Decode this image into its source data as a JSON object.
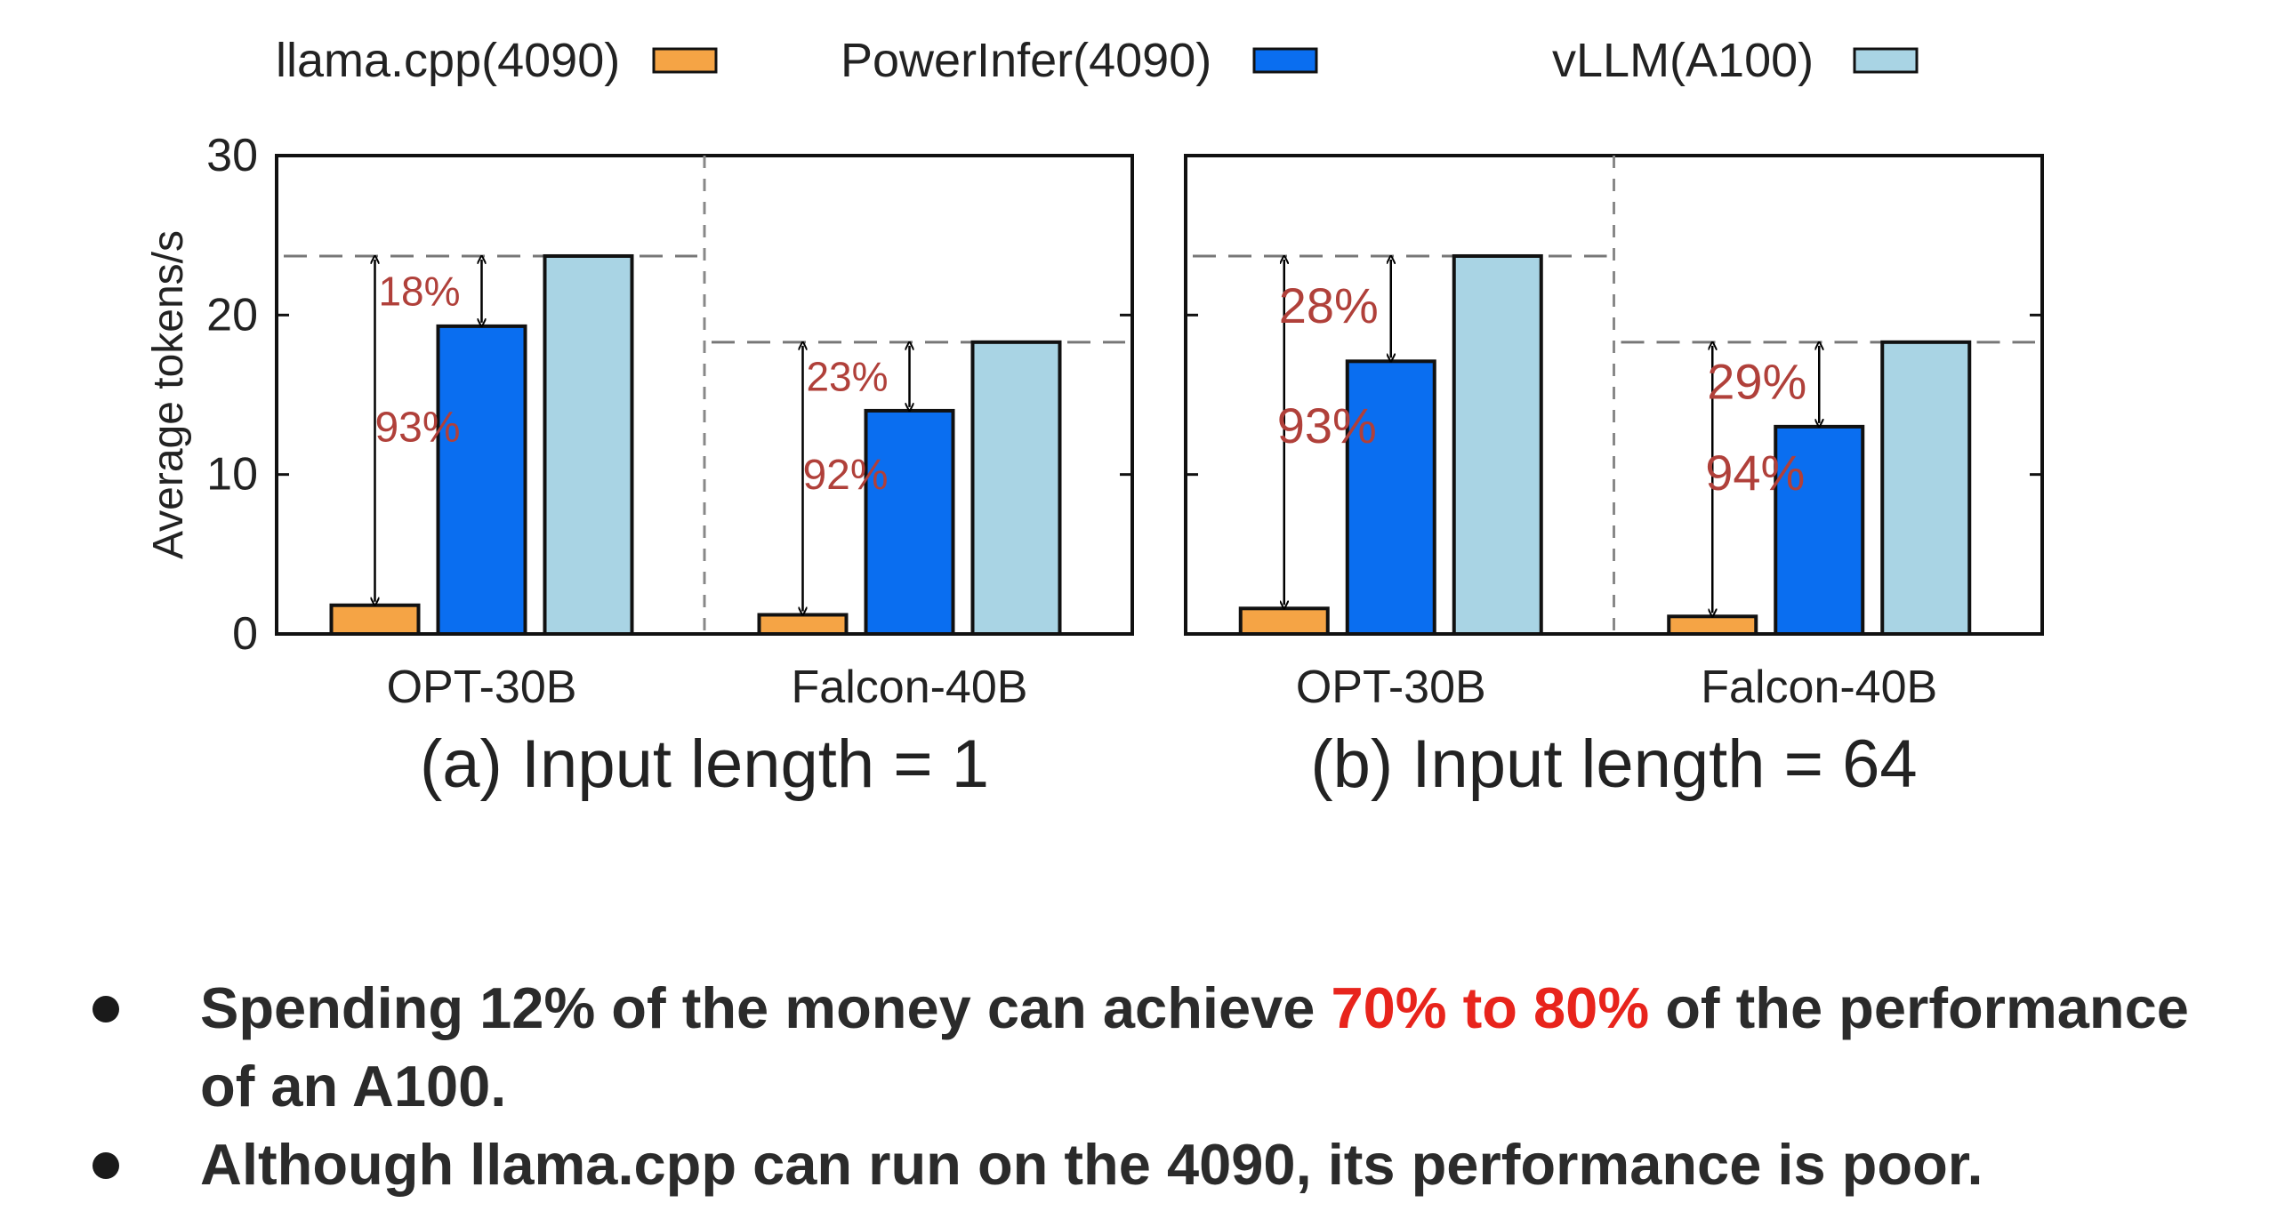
{
  "colors": {
    "llama": "#f5a445",
    "powerinfer": "#0a6ef0",
    "vllm": "#a9d4e4",
    "annotation": "#b0403a",
    "highlight": "#e8241c"
  },
  "chart_data": {
    "type": "bar",
    "ylabel": "Average tokens/s",
    "ylim": [
      0,
      30
    ],
    "yticks": [
      "0",
      "10",
      "20",
      "30"
    ],
    "legend": {
      "placement": "top",
      "entries": [
        {
          "name": "llama.cpp(4090)",
          "color_key": "llama"
        },
        {
          "name": "PowerInfer(4090)",
          "color_key": "powerinfer"
        },
        {
          "name": "vLLM(A100)",
          "color_key": "vllm"
        }
      ]
    },
    "panels": [
      {
        "title": "(a) Input length = 1",
        "categories": [
          "OPT-30B",
          "Falcon-40B"
        ],
        "series": [
          {
            "name": "llama.cpp(4090)",
            "values": [
              1.8,
              1.2
            ]
          },
          {
            "name": "PowerInfer(4090)",
            "values": [
              19.3,
              14.0
            ]
          },
          {
            "name": "vLLM(A100)",
            "values": [
              23.7,
              18.3
            ]
          }
        ],
        "annotations": [
          {
            "category": 0,
            "gap_label": "18%",
            "drop_label": "93%"
          },
          {
            "category": 1,
            "gap_label": "23%",
            "drop_label": "92%"
          }
        ]
      },
      {
        "title": "(b) Input length = 64",
        "categories": [
          "OPT-30B",
          "Falcon-40B"
        ],
        "series": [
          {
            "name": "llama.cpp(4090)",
            "values": [
              1.6,
              1.1
            ]
          },
          {
            "name": "PowerInfer(4090)",
            "values": [
              17.1,
              13.0
            ]
          },
          {
            "name": "vLLM(A100)",
            "values": [
              23.7,
              18.3
            ]
          }
        ],
        "annotations": [
          {
            "category": 0,
            "gap_label": "28%",
            "drop_label": "93%"
          },
          {
            "category": 1,
            "gap_label": "29%",
            "drop_label": "94%"
          }
        ]
      }
    ]
  },
  "bullets": [
    {
      "prefix": "Spending 12% of the money can achieve ",
      "highlight": "70% to 80%",
      "suffix": " of the performance of an A100."
    },
    {
      "text": "Although llama.cpp can run on the 4090, its performance is poor."
    }
  ]
}
